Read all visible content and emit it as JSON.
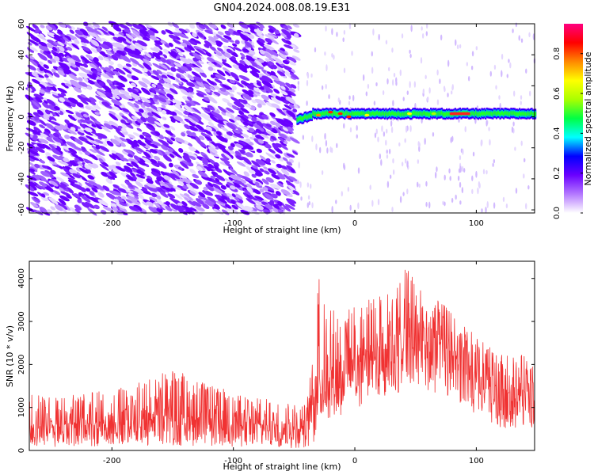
{
  "title": "GN04.2024.008.08.19.E31",
  "chart_data": [
    {
      "type": "heatmap",
      "xlabel": "Height of straight line (km)",
      "ylabel": "Frequency (Hz)",
      "xlim": [
        -268,
        148
      ],
      "ylim": [
        -62,
        60
      ],
      "x_ticks": [
        -200,
        -100,
        0,
        100
      ],
      "y_ticks": [
        -60,
        -40,
        -20,
        0,
        20,
        40,
        60
      ],
      "grid": false,
      "colorbar": {
        "label": "Normalized spectral amplitude",
        "range": [
          0,
          0.95
        ],
        "ticks": [
          0.0,
          0.2,
          0.4,
          0.6,
          0.8
        ],
        "colors": [
          "#ffffff",
          "#b478ff",
          "#6a00ff",
          "#0000ff",
          "#00ffff",
          "#00ff44",
          "#aaff00",
          "#ffff00",
          "#ff8800",
          "#ff0000",
          "#ff0080"
        ]
      },
      "regions": [
        {
          "x_range": [
            -268,
            -48
          ],
          "freq_range": [
            -62,
            60
          ],
          "amplitude": "scattered 0.1-0.3 (broadband noise)"
        },
        {
          "x_range": [
            -48,
            148
          ],
          "freq_center": 2,
          "band_halfwidth_hz": 2.5,
          "amplitude": "0.4-0.9 narrow line near 0-5 Hz"
        },
        {
          "x_range": [
            78,
            95
          ],
          "freq_center": 2,
          "amplitude": "peak ~0.9"
        }
      ]
    },
    {
      "type": "line",
      "xlabel": "Height of straight line (km)",
      "ylabel": "SNR (10 * v/v)",
      "xlim": [
        -268,
        148
      ],
      "ylim": [
        0,
        4400
      ],
      "x_ticks": [
        -200,
        -100,
        0,
        100
      ],
      "y_ticks": [
        0,
        1000,
        2000,
        3000,
        4000
      ],
      "grid": false,
      "series": [
        {
          "color": "#f03232",
          "envelope": [
            {
              "x": -268,
              "low": 80,
              "mean": 600,
              "high": 1300
            },
            {
              "x": -240,
              "low": 80,
              "mean": 600,
              "high": 1250
            },
            {
              "x": -200,
              "low": 100,
              "mean": 650,
              "high": 1450
            },
            {
              "x": -170,
              "low": 120,
              "mean": 760,
              "high": 1650
            },
            {
              "x": -150,
              "low": 120,
              "mean": 800,
              "high": 1900
            },
            {
              "x": -120,
              "low": 100,
              "mean": 720,
              "high": 1550
            },
            {
              "x": -90,
              "low": 80,
              "mean": 620,
              "high": 1250
            },
            {
              "x": -60,
              "low": 60,
              "mean": 560,
              "high": 1150
            },
            {
              "x": -40,
              "low": 50,
              "mean": 540,
              "high": 1050
            },
            {
              "x": -34,
              "low": 150,
              "mean": 1400,
              "high": 2300
            },
            {
              "x": -30,
              "low": 700,
              "mean": 1750,
              "high": 4200
            },
            {
              "x": -10,
              "low": 800,
              "mean": 1950,
              "high": 3200
            },
            {
              "x": 10,
              "low": 1100,
              "mean": 2250,
              "high": 3500
            },
            {
              "x": 30,
              "low": 1300,
              "mean": 2550,
              "high": 3700
            },
            {
              "x": 42,
              "low": 1400,
              "mean": 2600,
              "high": 4300
            },
            {
              "x": 60,
              "low": 1400,
              "mean": 2600,
              "high": 3650
            },
            {
              "x": 80,
              "low": 1200,
              "mean": 2300,
              "high": 3250
            },
            {
              "x": 100,
              "low": 800,
              "mean": 1700,
              "high": 2650
            },
            {
              "x": 120,
              "low": 500,
              "mean": 1350,
              "high": 2250
            },
            {
              "x": 148,
              "low": 500,
              "mean": 1350,
              "high": 2200
            }
          ]
        }
      ]
    }
  ]
}
